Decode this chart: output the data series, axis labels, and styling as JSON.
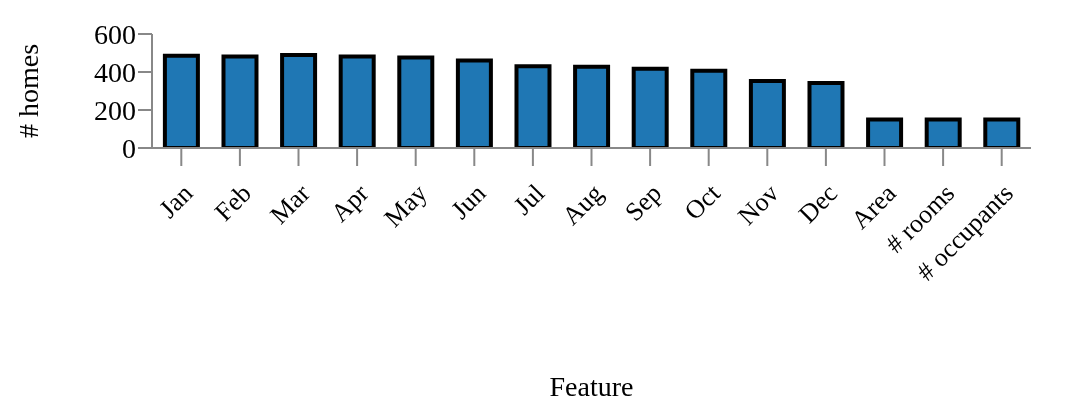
{
  "chart_data": {
    "type": "bar",
    "xlabel": "Feature",
    "ylabel": "# homes",
    "categories": [
      "Jan",
      "Feb",
      "Mar",
      "Apr",
      "May",
      "Jun",
      "Jul",
      "Aug",
      "Sep",
      "Oct",
      "Nov",
      "Dec",
      "Area",
      "# rooms",
      "# occupants"
    ],
    "values": [
      486,
      482,
      490,
      482,
      476,
      461,
      430,
      427,
      417,
      406,
      352,
      342,
      150,
      150,
      150
    ],
    "color": "#1f77b4",
    "ylim": [
      0,
      600
    ],
    "yticks": [
      0,
      200,
      400,
      600
    ]
  }
}
